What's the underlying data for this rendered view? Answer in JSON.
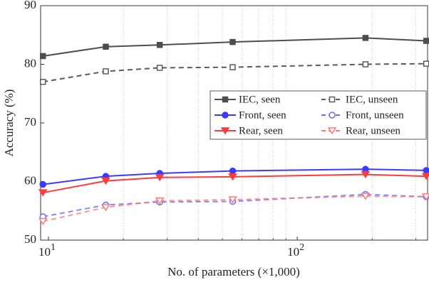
{
  "chart_data": {
    "type": "line",
    "xlabel": "No. of parameters (×1,000)",
    "ylabel": "Accuracy (%)",
    "log_x": true,
    "grid": "minor-x",
    "legend": "right",
    "xlim": [
      9.3,
      334
    ],
    "ylim": [
      50,
      90
    ],
    "xticks": [
      {
        "value": 10,
        "label": "10",
        "exponent": "1"
      },
      {
        "value": 100,
        "label": "10",
        "exponent": "2"
      }
    ],
    "xminorticks": [
      20,
      30,
      40,
      50,
      60,
      70,
      80,
      90,
      200,
      300
    ],
    "yticks": [
      50,
      60,
      70,
      80,
      90
    ],
    "x": [
      9.5,
      17,
      28,
      55,
      188,
      330
    ],
    "series": [
      {
        "name": "IEC, seen",
        "color": "#4d4d4d",
        "dash": false,
        "marker": "square",
        "values": [
          81.4,
          83.0,
          83.3,
          83.8,
          84.5,
          84.0
        ]
      },
      {
        "name": "IEC, unseen",
        "color": "#5a5a5a",
        "dash": true,
        "marker": "square",
        "values": [
          77.0,
          78.8,
          79.4,
          79.5,
          80.0,
          80.1
        ]
      },
      {
        "name": "Front, seen",
        "color": "#3b3bff",
        "dash": false,
        "marker": "circle",
        "values": [
          59.5,
          60.9,
          61.4,
          61.8,
          62.1,
          61.9
        ]
      },
      {
        "name": "Front, unseen",
        "color": "#6b6bff",
        "dash": true,
        "marker": "circle",
        "values": [
          54.0,
          56.0,
          56.5,
          56.6,
          57.8,
          57.4
        ]
      },
      {
        "name": "Rear, seen",
        "color": "#ff3b3b",
        "dash": false,
        "marker": "triangle",
        "values": [
          58.1,
          60.1,
          60.7,
          60.8,
          61.2,
          60.9
        ]
      },
      {
        "name": "Rear, unseen",
        "color": "#ff7a7a",
        "dash": true,
        "marker": "triangle",
        "values": [
          53.2,
          55.6,
          56.7,
          56.9,
          57.5,
          57.4
        ]
      }
    ]
  }
}
